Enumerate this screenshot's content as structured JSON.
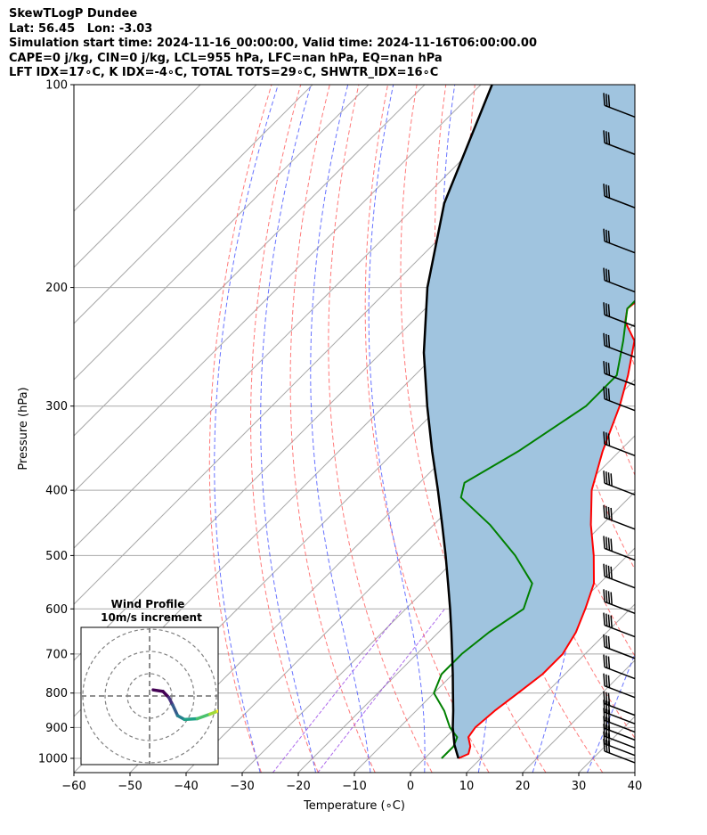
{
  "header": {
    "line1": "SkewTLogP Dundee",
    "line2": "Lat: 56.45   Lon: -3.03",
    "line3": "Simulation start time: 2024-11-16_00:00:00, Valid time: 2024-11-16T06:00:00.00",
    "line4": "CAPE=0 j/kg, CIN=0 j/kg, LCL=955 hPa, LFC=nan hPa, EQ=nan hPa",
    "line5": "LFT IDX=17∘C, K IDX=-4∘C, TOTAL TOTS=29∘C, SHWTR_IDX=16∘C"
  },
  "chart_data": {
    "type": "line",
    "title": "SkewTLogP Dundee",
    "xlabel": "Temperature (∘C)",
    "ylabel": "Pressure (hPa)",
    "xlim": [
      -60,
      40
    ],
    "ylim": [
      1050,
      100
    ],
    "y_scale": "log",
    "x_ticks": [
      "−60",
      "−50",
      "−40",
      "−30",
      "−20",
      "−10",
      "0",
      "10",
      "20",
      "30",
      "40"
    ],
    "x_tick_values": [
      -60,
      -50,
      -40,
      -30,
      -20,
      -10,
      0,
      10,
      20,
      30,
      40
    ],
    "y_ticks": [
      "100",
      "200",
      "300",
      "400",
      "500",
      "600",
      "700",
      "800",
      "900",
      "1000"
    ],
    "y_tick_values": [
      100,
      200,
      300,
      400,
      500,
      600,
      700,
      800,
      900,
      1000
    ],
    "grid": true,
    "series": [
      {
        "role": "temperature",
        "color": "#ff0000",
        "points": [
          [
            1000,
            6
          ],
          [
            985,
            7
          ],
          [
            960,
            6
          ],
          [
            930,
            4
          ],
          [
            900,
            3.5
          ],
          [
            850,
            4
          ],
          [
            800,
            5
          ],
          [
            750,
            6
          ],
          [
            700,
            6
          ],
          [
            650,
            4.5
          ],
          [
            600,
            2
          ],
          [
            550,
            -1
          ],
          [
            500,
            -6
          ],
          [
            450,
            -12
          ],
          [
            400,
            -18
          ],
          [
            350,
            -23
          ],
          [
            300,
            -28
          ],
          [
            270,
            -32
          ],
          [
            240,
            -37
          ],
          [
            225,
            -42
          ],
          [
            215,
            -44
          ],
          [
            200,
            -43
          ],
          [
            180,
            -40
          ],
          [
            160,
            -37
          ],
          [
            140,
            -33
          ],
          [
            120,
            -33
          ],
          [
            110,
            -33
          ],
          [
            100,
            -33
          ]
        ]
      },
      {
        "role": "dewpoint",
        "color": "#008000",
        "points": [
          [
            1000,
            3
          ],
          [
            985,
            3
          ],
          [
            960,
            3
          ],
          [
            930,
            2
          ],
          [
            900,
            -1
          ],
          [
            850,
            -5
          ],
          [
            800,
            -10
          ],
          [
            750,
            -12
          ],
          [
            700,
            -12
          ],
          [
            650,
            -11
          ],
          [
            600,
            -9
          ],
          [
            550,
            -12
          ],
          [
            500,
            -20
          ],
          [
            450,
            -30
          ],
          [
            410,
            -40
          ],
          [
            390,
            -42
          ],
          [
            350,
            -38
          ],
          [
            300,
            -34
          ],
          [
            270,
            -34
          ],
          [
            240,
            -39
          ],
          [
            215,
            -44
          ],
          [
            200,
            -44
          ],
          [
            180,
            -45
          ],
          [
            160,
            -48
          ],
          [
            150,
            -51
          ],
          [
            135,
            -54
          ],
          [
            115,
            -56
          ],
          [
            100,
            -58
          ]
        ]
      },
      {
        "role": "parcel",
        "color": "#000000",
        "points": [
          [
            1000,
            6
          ],
          [
            955,
            2.9
          ],
          [
            900,
            -0.5
          ],
          [
            850,
            -3.4
          ],
          [
            800,
            -6.6
          ],
          [
            750,
            -10.0
          ],
          [
            700,
            -13.7
          ],
          [
            650,
            -17.7
          ],
          [
            600,
            -22.1
          ],
          [
            550,
            -27.0
          ],
          [
            500,
            -32.4
          ],
          [
            450,
            -38.5
          ],
          [
            400,
            -45.4
          ],
          [
            350,
            -53.4
          ],
          [
            300,
            -62.3
          ],
          [
            250,
            -72.4
          ],
          [
            200,
            -83.4
          ],
          [
            150,
            -95.4
          ],
          [
            100,
            -108.0
          ]
        ]
      }
    ],
    "fill_between": {
      "color": "#a0c4df",
      "between": [
        "temperature",
        "parcel"
      ]
    },
    "reference_lines": {
      "isotherms_color": "#a9a9a9",
      "dry_adiabats_color": "#ff6b6b",
      "moist_adiabats_color": "#4d5bff",
      "mixing_ratio_color": "#8a2be2"
    },
    "wind_barbs": {
      "color": "#000000",
      "pressures": [
        1000,
        975,
        950,
        925,
        900,
        875,
        850,
        800,
        750,
        700,
        650,
        600,
        550,
        500,
        450,
        400,
        350,
        300,
        275,
        250,
        225,
        200,
        175,
        150,
        125,
        110
      ]
    },
    "inset": {
      "title": "Wind Profile",
      "subtitle": "10m/s increment",
      "rings": 3,
      "hodograph": [
        [
          -1.0,
          0.4
        ],
        [
          0.0,
          0.3
        ],
        [
          0.6,
          -0.1
        ],
        [
          1.0,
          -0.6
        ],
        [
          1.5,
          -1.3
        ],
        [
          2.2,
          -1.55
        ],
        [
          3.5,
          -1.5
        ],
        [
          4.8,
          -1.2
        ],
        [
          5.6,
          -1.0
        ],
        [
          6.2,
          -1.0
        ]
      ],
      "hodograph_colors": [
        "#440154",
        "#46327e",
        "#365c8d",
        "#277f8e",
        "#1fa187",
        "#4ac16d",
        "#a0da39",
        "#fde725"
      ]
    }
  }
}
